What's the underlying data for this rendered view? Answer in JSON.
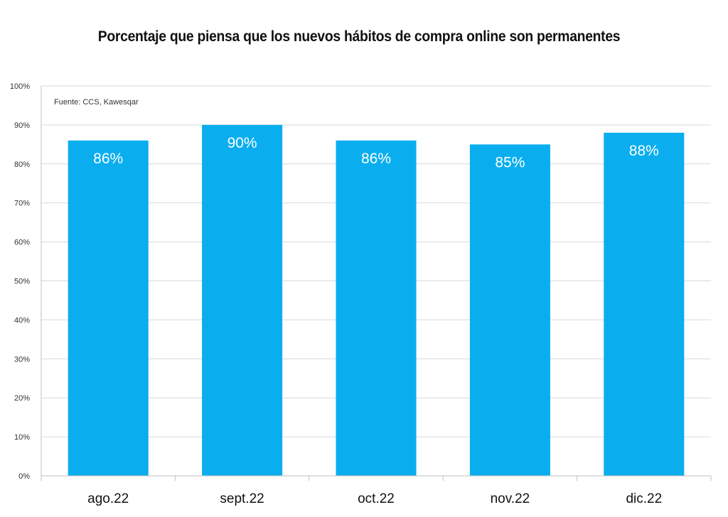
{
  "chart_data": {
    "type": "bar",
    "title": "Porcentaje que piensa que los nuevos hábitos de compra online son permanentes",
    "source_note": "Fuente: CCS, Kawesqar",
    "categories": [
      "ago.22",
      "sept.22",
      "oct.22",
      "nov.22",
      "dic.22"
    ],
    "values": [
      86,
      90,
      86,
      85,
      88
    ],
    "data_labels": [
      "86%",
      "90%",
      "86%",
      "85%",
      "88%"
    ],
    "y_ticks": [
      0,
      10,
      20,
      30,
      40,
      50,
      60,
      70,
      80,
      90,
      100
    ],
    "y_tick_labels": [
      "0%",
      "10%",
      "20%",
      "30%",
      "40%",
      "50%",
      "60%",
      "70%",
      "80%",
      "90%",
      "100%"
    ],
    "ylim": [
      0,
      100
    ],
    "grid": true,
    "legend": "none",
    "bar_color": "#0AAEEF",
    "grid_color": "#D9D9D9",
    "axis_color": "#BFBFBF"
  }
}
